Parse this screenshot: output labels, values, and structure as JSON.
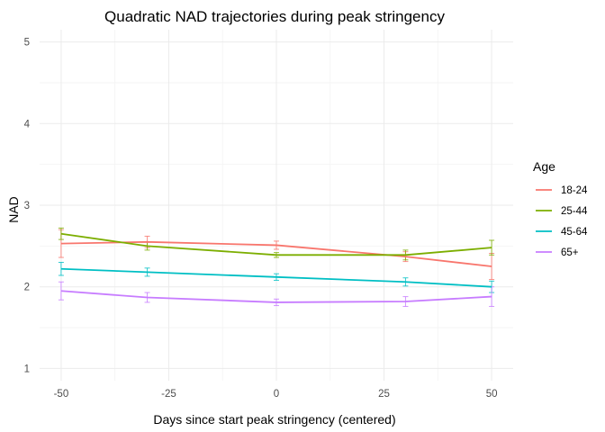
{
  "chart_data": {
    "type": "line",
    "title": "Quadratic NAD trajectories during peak stringency",
    "xlabel": "Days since start peak stringency (centered)",
    "ylabel": "NAD",
    "xlim": [
      -55,
      55
    ],
    "ylim": [
      0.85,
      5.15
    ],
    "x_ticks": [
      -50,
      -25,
      0,
      25,
      50
    ],
    "x_tick_labels": [
      "-50",
      "-25",
      "0",
      "25",
      "50"
    ],
    "y_ticks": [
      1,
      2,
      3,
      4,
      5
    ],
    "y_tick_labels": [
      "1",
      "2",
      "3",
      "4",
      "5"
    ],
    "grid": true,
    "legend": {
      "title": "Age",
      "position": "right"
    },
    "x": [
      -50,
      -30,
      0,
      30,
      50
    ],
    "series": [
      {
        "name": "18-24",
        "color": "#F8766D",
        "values": [
          2.53,
          2.55,
          2.51,
          2.37,
          2.25
        ],
        "error": [
          0.17,
          0.07,
          0.05,
          0.06,
          0.16
        ]
      },
      {
        "name": "25-44",
        "color": "#7CAE00",
        "values": [
          2.65,
          2.5,
          2.39,
          2.39,
          2.48
        ],
        "error": [
          0.07,
          0.05,
          0.03,
          0.06,
          0.09
        ]
      },
      {
        "name": "45-64",
        "color": "#00BFC4",
        "values": [
          2.22,
          2.18,
          2.12,
          2.06,
          2.0
        ],
        "error": [
          0.08,
          0.05,
          0.04,
          0.05,
          0.07
        ]
      },
      {
        "name": "65+",
        "color": "#C77CFF",
        "values": [
          1.95,
          1.87,
          1.81,
          1.82,
          1.88
        ],
        "error": [
          0.11,
          0.06,
          0.04,
          0.06,
          0.12
        ]
      }
    ]
  }
}
